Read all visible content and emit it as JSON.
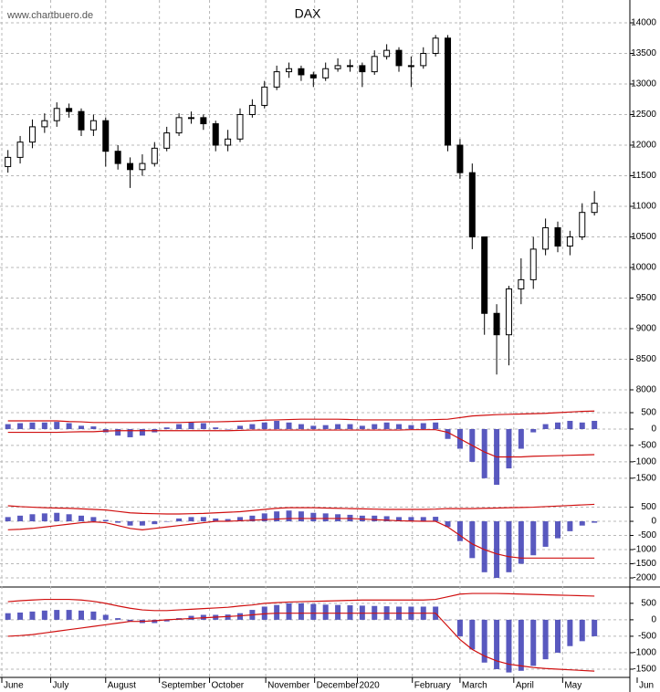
{
  "chart_data": [
    {
      "type": "candlestick",
      "title": "DAX",
      "watermark": "www.chartbuero.de",
      "color": "#000000",
      "open": [
        11650,
        11800,
        12050,
        12300,
        12400,
        12600,
        12550,
        12250,
        12400,
        11900,
        11700,
        11600,
        11700,
        11950,
        12200,
        12450,
        12450,
        12350,
        12000,
        12100,
        12500,
        12650,
        12950,
        13200,
        13250,
        13150,
        13100,
        13250,
        13300,
        13300,
        13200,
        13450,
        13550,
        13300,
        13300,
        13500,
        13750,
        12000,
        11550,
        10500,
        9250,
        8900,
        9650,
        9800,
        10300,
        10650,
        10350,
        10500,
        10900
      ],
      "high": [
        11920,
        12150,
        12420,
        12520,
        12700,
        12680,
        12600,
        12500,
        12450,
        12000,
        11800,
        11850,
        12050,
        12300,
        12520,
        12550,
        12500,
        12400,
        12250,
        12600,
        12750,
        13050,
        13300,
        13350,
        13300,
        13200,
        13350,
        13420,
        13400,
        13350,
        13550,
        13650,
        13600,
        13450,
        13600,
        13800,
        13800,
        12100,
        11700,
        10500,
        9400,
        9700,
        10150,
        10500,
        10800,
        10750,
        10600,
        11050,
        11250
      ],
      "low": [
        11550,
        11700,
        11950,
        12200,
        12300,
        12450,
        12150,
        12150,
        11650,
        11600,
        11300,
        11500,
        11650,
        11900,
        12150,
        12350,
        12250,
        11900,
        11900,
        12050,
        12450,
        12600,
        12900,
        13100,
        13050,
        12950,
        13050,
        13200,
        13200,
        12950,
        13150,
        13400,
        13200,
        12950,
        13250,
        13450,
        11900,
        11450,
        10300,
        8900,
        8250,
        8400,
        9400,
        9650,
        10200,
        10250,
        10200,
        10450,
        10850
      ],
      "close": [
        11800,
        12050,
        12300,
        12400,
        12600,
        12550,
        12250,
        12400,
        11900,
        11700,
        11600,
        11700,
        11950,
        12200,
        12450,
        12450,
        12350,
        12000,
        12100,
        12500,
        12650,
        12950,
        13200,
        13250,
        13150,
        13100,
        13250,
        13300,
        13300,
        13200,
        13450,
        13550,
        13300,
        13300,
        13500,
        13750,
        12000,
        11550,
        10500,
        9250,
        8900,
        9650,
        9800,
        10300,
        10650,
        10350,
        10500,
        10900,
        11050
      ],
      "ylim": [
        7806,
        14373
      ],
      "yticks": [
        8000,
        8500,
        9000,
        9500,
        10000,
        10500,
        11000,
        11500,
        12000,
        12500,
        13000,
        13500,
        14000
      ],
      "grid": true
    },
    {
      "type": "bar",
      "ylim": [
        -1950,
        640
      ],
      "yticks": [
        500,
        0,
        -500,
        -1000,
        -1500
      ],
      "grid": true,
      "histogram": {
        "color": "#3c3cb4",
        "values": [
          150,
          180,
          200,
          200,
          220,
          180,
          100,
          80,
          -100,
          -200,
          -250,
          -200,
          -100,
          50,
          150,
          200,
          180,
          50,
          0,
          100,
          150,
          200,
          250,
          200,
          150,
          100,
          120,
          150,
          150,
          100,
          150,
          200,
          150,
          120,
          180,
          200,
          -300,
          -600,
          -1000,
          -1500,
          -1700,
          -1200,
          -600,
          -100,
          150,
          200,
          250,
          200,
          250
        ]
      },
      "bands": [
        {
          "color": "#d01010",
          "values": [
            250,
            250,
            250,
            250,
            250,
            230,
            220,
            200,
            200,
            200,
            200,
            200,
            200,
            200,
            200,
            210,
            220,
            220,
            230,
            240,
            250,
            270,
            280,
            290,
            300,
            300,
            300,
            300,
            290,
            280,
            280,
            280,
            280,
            280,
            280,
            290,
            300,
            350,
            400,
            420,
            440,
            450,
            460,
            470,
            480,
            500,
            520,
            540,
            550
          ]
        },
        {
          "color": "#d01010",
          "values": [
            -100,
            -100,
            -100,
            -100,
            -100,
            -90,
            -80,
            -80,
            -60,
            -50,
            -50,
            -50,
            -50,
            -50,
            -50,
            -50,
            -50,
            -50,
            -50,
            -40,
            -30,
            -30,
            -30,
            -30,
            -30,
            -30,
            -30,
            -30,
            -30,
            -30,
            -30,
            -30,
            -30,
            -20,
            -20,
            -20,
            -100,
            -300,
            -500,
            -700,
            -850,
            -850,
            -850,
            -830,
            -820,
            -810,
            -800,
            -790,
            -780
          ]
        }
      ]
    },
    {
      "type": "bar",
      "ylim": [
        -2225,
        840
      ],
      "yticks": [
        500,
        0,
        -500,
        -1000,
        -1500,
        -2000
      ],
      "grid": true,
      "histogram": {
        "color": "#3c3cb4",
        "values": [
          150,
          200,
          250,
          280,
          300,
          250,
          200,
          150,
          50,
          -50,
          -150,
          -150,
          -100,
          0,
          100,
          150,
          150,
          100,
          80,
          150,
          200,
          280,
          350,
          380,
          350,
          300,
          280,
          250,
          230,
          200,
          200,
          180,
          150,
          150,
          150,
          160,
          -200,
          -700,
          -1300,
          -1800,
          -2000,
          -1800,
          -1500,
          -1200,
          -900,
          -600,
          -350,
          -150,
          -50
        ]
      },
      "bands": [
        {
          "color": "#d01010",
          "values": [
            550,
            520,
            500,
            480,
            470,
            460,
            440,
            420,
            400,
            350,
            300,
            280,
            270,
            260,
            260,
            270,
            280,
            300,
            320,
            340,
            380,
            420,
            460,
            480,
            480,
            480,
            470,
            460,
            450,
            440,
            430,
            420,
            420,
            420,
            420,
            430,
            450,
            450,
            450,
            460,
            470,
            480,
            490,
            500,
            520,
            540,
            560,
            580,
            600
          ]
        },
        {
          "color": "#d01010",
          "values": [
            -300,
            -280,
            -250,
            -200,
            -150,
            -100,
            -50,
            -20,
            -50,
            -150,
            -250,
            -300,
            -250,
            -200,
            -150,
            -100,
            -50,
            0,
            0,
            20,
            40,
            60,
            80,
            100,
            100,
            100,
            100,
            100,
            100,
            80,
            60,
            40,
            20,
            10,
            0,
            0,
            -200,
            -500,
            -800,
            -1000,
            -1150,
            -1250,
            -1300,
            -1300,
            -1300,
            -1300,
            -1300,
            -1300,
            -1300
          ]
        }
      ]
    },
    {
      "type": "bar",
      "ylim": [
        -1750,
        940
      ],
      "yticks": [
        500,
        0,
        -500,
        -1000,
        -1500
      ],
      "grid": true,
      "histogram": {
        "color": "#3c3cb4",
        "values": [
          200,
          220,
          250,
          280,
          300,
          300,
          280,
          250,
          150,
          50,
          -50,
          -100,
          -100,
          -50,
          50,
          120,
          150,
          150,
          160,
          200,
          300,
          400,
          450,
          500,
          500,
          480,
          460,
          450,
          440,
          430,
          420,
          410,
          400,
          400,
          400,
          400,
          0,
          -500,
          -900,
          -1300,
          -1500,
          -1600,
          -1550,
          -1400,
          -1200,
          -1000,
          -800,
          -650,
          -500
        ]
      },
      "bands": [
        {
          "color": "#d01010",
          "values": [
            550,
            580,
            600,
            620,
            620,
            620,
            600,
            560,
            500,
            420,
            350,
            300,
            280,
            280,
            300,
            320,
            340,
            360,
            380,
            420,
            450,
            500,
            520,
            540,
            550,
            560,
            570,
            580,
            590,
            600,
            600,
            600,
            600,
            600,
            600,
            620,
            700,
            780,
            800,
            800,
            800,
            790,
            780,
            770,
            760,
            750,
            740,
            730,
            720
          ]
        },
        {
          "color": "#d01010",
          "values": [
            -500,
            -480,
            -450,
            -400,
            -350,
            -300,
            -250,
            -200,
            -150,
            -100,
            -50,
            -50,
            -30,
            0,
            20,
            40,
            60,
            80,
            100,
            120,
            150,
            180,
            200,
            200,
            200,
            200,
            200,
            200,
            200,
            200,
            200,
            200,
            200,
            200,
            200,
            200,
            -200,
            -600,
            -900,
            -1100,
            -1250,
            -1350,
            -1400,
            -1450,
            -1480,
            -1500,
            -1520,
            -1540,
            -1560
          ]
        }
      ],
      "xlim": [
        0,
        52
      ],
      "xticks": [
        {
          "value": 0,
          "label": "June"
        },
        {
          "value": 4,
          "label": "July"
        },
        {
          "value": 8.5,
          "label": "August"
        },
        {
          "value": 12.9,
          "label": "September"
        },
        {
          "value": 17,
          "label": "October"
        },
        {
          "value": 21.6,
          "label": "November"
        },
        {
          "value": 25.6,
          "label": "December"
        },
        {
          "value": 29.1,
          "label": "2020"
        },
        {
          "value": 33.6,
          "label": "February"
        },
        {
          "value": 37.5,
          "label": "March"
        },
        {
          "value": 41.9,
          "label": "April"
        },
        {
          "value": 45.9,
          "label": "May"
        },
        {
          "value": 52,
          "label": "Jun"
        }
      ]
    }
  ]
}
